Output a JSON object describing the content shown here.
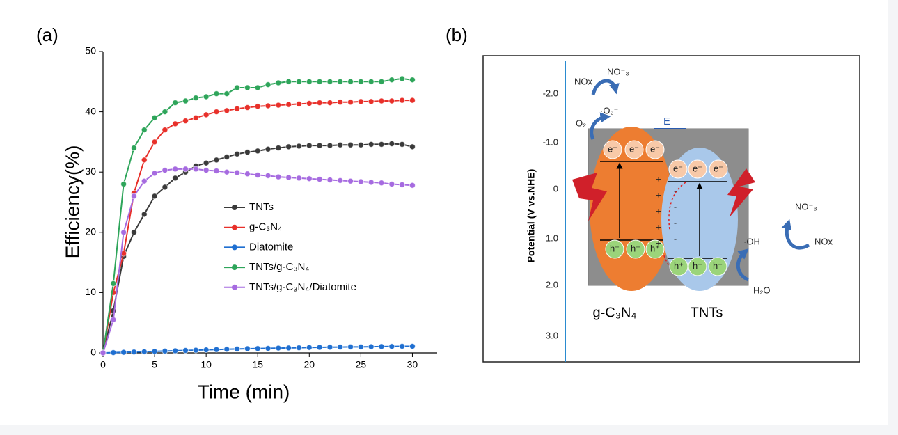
{
  "panel_labels": [
    "(a)",
    "(b)"
  ],
  "chart_data": {
    "type": "line",
    "x_label": "Time (min)",
    "y_label": "Efficiency(%)",
    "x": [
      0,
      1,
      2,
      3,
      4,
      5,
      6,
      7,
      8,
      9,
      10,
      11,
      12,
      13,
      14,
      15,
      16,
      17,
      18,
      19,
      20,
      21,
      22,
      23,
      24,
      25,
      26,
      27,
      28,
      29,
      30
    ],
    "xlim": [
      0,
      32.4
    ],
    "ylim": [
      0,
      50
    ],
    "xticks": [
      0,
      5,
      10,
      15,
      20,
      25,
      30
    ],
    "yticks": [
      0,
      10,
      20,
      30,
      40,
      50
    ],
    "series": [
      {
        "name": "TNTs",
        "color": "#3a3a3a",
        "values": [
          0,
          7,
          16,
          20,
          23,
          26,
          27.5,
          29,
          30,
          31,
          31.5,
          32,
          32.5,
          33,
          33.3,
          33.5,
          33.8,
          34,
          34.2,
          34.3,
          34.4,
          34.4,
          34.4,
          34.5,
          34.5,
          34.5,
          34.6,
          34.6,
          34.7,
          34.6,
          34.2
        ]
      },
      {
        "name": "g-C₃N₄",
        "color": "#e8302a",
        "values": [
          0,
          10,
          16.5,
          26.5,
          32,
          35,
          37,
          38,
          38.5,
          39,
          39.5,
          40,
          40.2,
          40.5,
          40.7,
          40.9,
          41,
          41.1,
          41.2,
          41.3,
          41.4,
          41.5,
          41.5,
          41.6,
          41.6,
          41.7,
          41.7,
          41.8,
          41.8,
          41.9,
          41.9
        ]
      },
      {
        "name": "Diatomite",
        "color": "#1f6fd1",
        "values": [
          0,
          0.05,
          0.1,
          0.15,
          0.2,
          0.25,
          0.3,
          0.35,
          0.4,
          0.45,
          0.5,
          0.55,
          0.6,
          0.65,
          0.7,
          0.72,
          0.75,
          0.8,
          0.82,
          0.85,
          0.9,
          0.92,
          0.95,
          0.97,
          1,
          1,
          1.02,
          1.05,
          1.07,
          1.1,
          1.1
        ]
      },
      {
        "name": "TNTs/g-C₃N₄",
        "color": "#2ea55a",
        "values": [
          0,
          11.5,
          28,
          34,
          37,
          39,
          40,
          41.5,
          41.8,
          42.3,
          42.5,
          43,
          43,
          44,
          44,
          44,
          44.5,
          44.8,
          45,
          45,
          45,
          45,
          45,
          45,
          45,
          45,
          45,
          45,
          45.3,
          45.5,
          45.3
        ]
      },
      {
        "name": "TNTs/g-C₃N₄/Diatomite",
        "color": "#a66be0",
        "values": [
          0,
          5.5,
          20,
          26,
          28.5,
          29.8,
          30.3,
          30.5,
          30.5,
          30.5,
          30.3,
          30.2,
          30,
          29.9,
          29.7,
          29.5,
          29.4,
          29.2,
          29.1,
          29,
          28.9,
          28.8,
          28.7,
          28.6,
          28.5,
          28.4,
          28.3,
          28.2,
          28,
          27.9,
          27.8
        ]
      }
    ]
  },
  "diagram": {
    "axis_title": "Potential (V vs.NHE)",
    "ticks": [
      "-2.0",
      "-1.0",
      "0",
      "1.0",
      "2.0",
      "3.0"
    ],
    "top_left": {
      "nox": "NOx",
      "no3": "NO⁻₃",
      "o2_radical": "·O₂⁻",
      "o2": "O₂"
    },
    "field": "E",
    "electrons": [
      "e⁻",
      "e⁻",
      "e⁻",
      "e⁻",
      "e⁻",
      "e⁻"
    ],
    "holes": [
      "h⁺",
      "h⁺",
      "h⁺",
      "h⁺",
      "h⁺",
      "h⁺"
    ],
    "positive_charges": [
      "+",
      "+",
      "+",
      "+",
      "+"
    ],
    "negative_charges": [
      "-",
      "-",
      "-",
      "-"
    ],
    "materials": [
      "g-C₃N₄",
      "TNTs"
    ],
    "right": {
      "no3": "NO⁻₃",
      "nox": "NOx",
      "oh_radical": "·OH",
      "h2o": "H₂O"
    }
  }
}
